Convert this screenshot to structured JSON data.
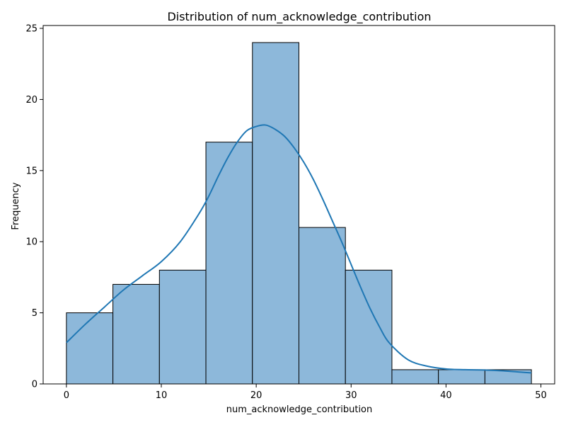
{
  "chart_data": {
    "type": "bar",
    "title": "Distribution of num_acknowledge_contribution",
    "xlabel": "num_acknowledge_contribution",
    "ylabel": "Frequency",
    "xlim": [
      -2.45,
      51.45
    ],
    "ylim": [
      0,
      25.2
    ],
    "xticks": [
      0,
      10,
      20,
      30,
      40,
      50
    ],
    "yticks": [
      0,
      5,
      10,
      15,
      20,
      25
    ],
    "bins": [
      {
        "start": 0.0,
        "end": 4.9,
        "count": 5
      },
      {
        "start": 4.9,
        "end": 9.8,
        "count": 7
      },
      {
        "start": 9.8,
        "end": 14.7,
        "count": 8
      },
      {
        "start": 14.7,
        "end": 19.6,
        "count": 17
      },
      {
        "start": 19.6,
        "end": 24.5,
        "count": 24
      },
      {
        "start": 24.5,
        "end": 29.4,
        "count": 11
      },
      {
        "start": 29.4,
        "end": 34.3,
        "count": 8
      },
      {
        "start": 34.3,
        "end": 39.2,
        "count": 1
      },
      {
        "start": 39.2,
        "end": 44.1,
        "count": 1
      },
      {
        "start": 44.1,
        "end": 49.0,
        "count": 1
      }
    ],
    "kde": {
      "x": [
        0,
        2,
        4,
        6,
        8,
        10,
        12,
        14,
        15,
        16,
        17,
        18,
        19,
        20,
        21,
        22,
        23,
        24,
        25,
        26,
        27,
        28,
        29,
        30,
        31,
        32,
        33,
        34,
        36,
        38,
        40,
        42,
        44,
        46,
        48,
        49
      ],
      "y": [
        2.9,
        4.2,
        5.4,
        6.6,
        7.6,
        8.6,
        10.0,
        12.0,
        13.2,
        14.6,
        15.9,
        17.0,
        17.8,
        18.1,
        18.2,
        17.9,
        17.4,
        16.6,
        15.6,
        14.4,
        13.0,
        11.5,
        10.0,
        8.4,
        6.8,
        5.3,
        4.0,
        2.9,
        1.7,
        1.25,
        1.05,
        1.0,
        0.98,
        0.92,
        0.82,
        0.78
      ]
    },
    "grid": false,
    "colors": {
      "bar_fill": "#8db8da",
      "bar_edge": "#000000",
      "kde_line": "#1f77b4"
    }
  }
}
